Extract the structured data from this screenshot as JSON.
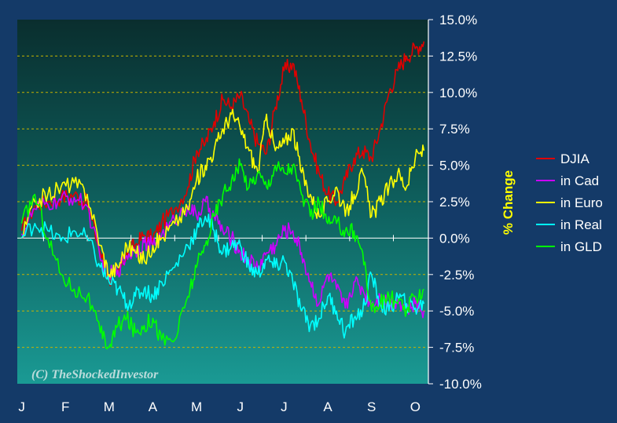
{
  "chart_data": {
    "type": "line",
    "title": "",
    "xlabel": "",
    "ylabel": "% Change",
    "ylim": [
      -10,
      15
    ],
    "y_ticks": [
      15,
      12.5,
      10,
      7.5,
      5,
      2.5,
      0,
      -2.5,
      -5,
      -7.5,
      -10
    ],
    "y_tick_labels": [
      "15.0%",
      "12.5%",
      "10.0%",
      "7.5%",
      "5.0%",
      "2.5%",
      "0.0%",
      "-2.5%",
      "-5.0%",
      "-7.5%",
      "-10.0%"
    ],
    "x_tick_labels": [
      "J",
      "F",
      "M",
      "A",
      "M",
      "J",
      "J",
      "A",
      "S",
      "O"
    ],
    "x_tick_positions": [
      0,
      1,
      2,
      3,
      4,
      5,
      6,
      7,
      8,
      9
    ],
    "xlim": [
      -0.1,
      9.3
    ],
    "grid": true,
    "legend_position": "right",
    "watermark": "(C) TheShockedInvestor",
    "series": [
      {
        "name": "DJIA",
        "color": "#e00000",
        "x": [
          0,
          0.3,
          0.6,
          0.9,
          1.2,
          1.5,
          1.8,
          2.0,
          2.2,
          2.4,
          2.6,
          2.8,
          3.0,
          3.2,
          3.5,
          3.8,
          4.0,
          4.2,
          4.4,
          4.6,
          4.8,
          5.0,
          5.2,
          5.4,
          5.6,
          5.8,
          6.0,
          6.2,
          6.4,
          6.6,
          6.8,
          7.0,
          7.2,
          7.4,
          7.6,
          7.8,
          8.0,
          8.2,
          8.4,
          8.6,
          8.8,
          9.0,
          9.2
        ],
        "values": [
          0.5,
          2.2,
          2.5,
          2.8,
          3.0,
          2.4,
          -1.0,
          -2.8,
          -2.5,
          -1.0,
          -0.5,
          0.2,
          0.0,
          1.0,
          2.0,
          3.5,
          6.0,
          6.5,
          8.0,
          9.5,
          9.0,
          9.8,
          8.0,
          6.5,
          5.8,
          9.0,
          11.5,
          12.0,
          9.5,
          6.5,
          4.5,
          3.0,
          2.5,
          4.0,
          5.5,
          6.0,
          5.5,
          7.5,
          10.0,
          11.5,
          12.5,
          13.0,
          13.5
        ]
      },
      {
        "name": "in Cad",
        "color": "#cc00ff",
        "x": [
          0,
          0.3,
          0.6,
          0.9,
          1.2,
          1.5,
          1.8,
          2.0,
          2.2,
          2.4,
          2.6,
          2.8,
          3.0,
          3.2,
          3.5,
          3.8,
          4.0,
          4.2,
          4.4,
          4.6,
          4.8,
          5.0,
          5.2,
          5.4,
          5.6,
          5.8,
          6.0,
          6.2,
          6.4,
          6.6,
          6.8,
          7.0,
          7.2,
          7.4,
          7.6,
          7.8,
          8.0,
          8.2,
          8.4,
          8.6,
          8.8,
          9.0,
          9.2
        ],
        "values": [
          0.3,
          2.0,
          2.3,
          2.6,
          2.8,
          2.2,
          -1.5,
          -2.5,
          -2.2,
          -1.2,
          -0.8,
          -0.3,
          -0.5,
          0.2,
          1.2,
          2.2,
          1.5,
          2.5,
          1.5,
          0.5,
          0.0,
          -1.0,
          -1.5,
          -2.0,
          -1.0,
          -0.5,
          0.5,
          0.5,
          -1.0,
          -3.0,
          -4.5,
          -2.5,
          -3.5,
          -4.8,
          -3.0,
          -3.5,
          -4.5,
          -4.0,
          -4.5,
          -4.2,
          -5.0,
          -4.5,
          -5.0
        ]
      },
      {
        "name": "in Euro",
        "color": "#ffff00",
        "x": [
          0,
          0.3,
          0.6,
          0.9,
          1.2,
          1.5,
          1.8,
          2.0,
          2.2,
          2.4,
          2.6,
          2.8,
          3.0,
          3.2,
          3.5,
          3.8,
          4.0,
          4.2,
          4.4,
          4.6,
          4.8,
          5.0,
          5.2,
          5.4,
          5.6,
          5.8,
          6.0,
          6.2,
          6.4,
          6.6,
          6.8,
          7.0,
          7.2,
          7.4,
          7.6,
          7.8,
          8.0,
          8.2,
          8.4,
          8.6,
          8.8,
          9.0,
          9.2
        ],
        "values": [
          0.0,
          2.5,
          3.0,
          3.5,
          3.8,
          3.0,
          -0.5,
          -2.5,
          -2.0,
          -0.5,
          -1.0,
          -1.5,
          -0.5,
          0.0,
          1.0,
          2.0,
          4.0,
          5.0,
          6.0,
          7.5,
          8.5,
          7.5,
          6.0,
          4.5,
          8.5,
          6.0,
          6.5,
          7.5,
          4.5,
          3.0,
          1.5,
          2.5,
          3.5,
          1.5,
          3.0,
          4.5,
          1.5,
          2.5,
          3.5,
          4.5,
          3.5,
          5.5,
          6.0
        ]
      },
      {
        "name": "in Real",
        "color": "#00ffff",
        "x": [
          0,
          0.3,
          0.6,
          0.9,
          1.2,
          1.5,
          1.8,
          2.0,
          2.2,
          2.4,
          2.6,
          2.8,
          3.0,
          3.2,
          3.5,
          3.8,
          4.0,
          4.2,
          4.4,
          4.6,
          4.8,
          5.0,
          5.2,
          5.4,
          5.6,
          5.8,
          6.0,
          6.2,
          6.4,
          6.6,
          6.8,
          7.0,
          7.2,
          7.4,
          7.6,
          7.8,
          8.0,
          8.2,
          8.4,
          8.6,
          8.8,
          9.0,
          9.2
        ],
        "values": [
          0.0,
          1.0,
          0.5,
          -0.2,
          0.5,
          0.0,
          -2.0,
          -3.0,
          -3.5,
          -4.5,
          -4.0,
          -3.5,
          -4.0,
          -3.0,
          -2.0,
          -0.5,
          0.5,
          1.5,
          0.5,
          -1.0,
          -0.5,
          -0.5,
          -2.0,
          -2.5,
          -1.5,
          -2.0,
          -1.5,
          -3.0,
          -5.0,
          -6.0,
          -5.5,
          -4.0,
          -5.0,
          -6.5,
          -5.5,
          -5.0,
          -2.5,
          -4.5,
          -5.0,
          -4.0,
          -4.5,
          -4.8,
          -4.5
        ]
      },
      {
        "name": "in GLD",
        "color": "#00ff00",
        "x": [
          0,
          0.3,
          0.6,
          0.9,
          1.2,
          1.5,
          1.8,
          2.0,
          2.2,
          2.4,
          2.6,
          2.8,
          3.0,
          3.2,
          3.5,
          3.8,
          4.0,
          4.2,
          4.4,
          4.6,
          4.8,
          5.0,
          5.2,
          5.4,
          5.6,
          5.8,
          6.0,
          6.2,
          6.4,
          6.6,
          6.8,
          7.0,
          7.2,
          7.4,
          7.6,
          7.8,
          8.0,
          8.2,
          8.4,
          8.6,
          8.8,
          9.0,
          9.2
        ],
        "values": [
          1.0,
          3.0,
          0.0,
          -2.5,
          -3.5,
          -4.0,
          -6.5,
          -7.5,
          -6.0,
          -5.5,
          -6.5,
          -6.0,
          -5.5,
          -7.0,
          -7.0,
          -4.0,
          -2.0,
          -0.5,
          1.5,
          3.0,
          4.0,
          5.0,
          3.5,
          4.5,
          3.5,
          5.0,
          4.5,
          5.0,
          3.0,
          1.5,
          2.5,
          1.0,
          1.0,
          0.5,
          0.5,
          -1.0,
          -5.0,
          -4.5,
          -4.0,
          -4.5,
          -5.0,
          -4.0,
          -3.5
        ]
      }
    ]
  }
}
